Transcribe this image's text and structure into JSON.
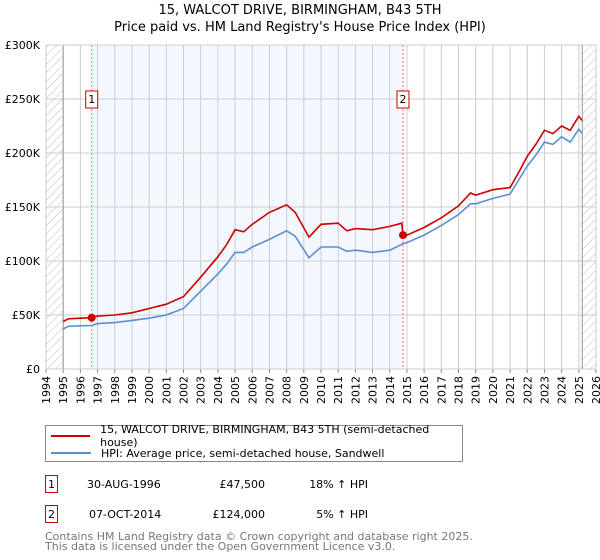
{
  "title_line1": "15, WALCOT DRIVE, BIRMINGHAM, B43 5TH",
  "title_line2": "Price paid vs. HM Land Registry's House Price Index (HPI)",
  "chart_data": {
    "type": "line",
    "title": "15, WALCOT DRIVE, BIRMINGHAM, B43 5TH — Price paid vs. HM Land Registry's House Price Index (HPI)",
    "xlim": [
      1994,
      2026
    ],
    "ylim": [
      0,
      300000
    ],
    "x_ticks": [
      "1994",
      "1995",
      "1996",
      "1997",
      "1998",
      "1999",
      "2000",
      "2001",
      "2002",
      "2003",
      "2004",
      "2005",
      "2006",
      "2007",
      "2008",
      "2009",
      "2010",
      "2011",
      "2012",
      "2013",
      "2014",
      "2015",
      "2016",
      "2017",
      "2018",
      "2019",
      "2020",
      "2021",
      "2022",
      "2023",
      "2024",
      "2025",
      "2026"
    ],
    "y_ticks": [
      {
        "v": 0,
        "label": "£0"
      },
      {
        "v": 50000,
        "label": "£50K"
      },
      {
        "v": 100000,
        "label": "£100K"
      },
      {
        "v": 150000,
        "label": "£150K"
      },
      {
        "v": 200000,
        "label": "£200K"
      },
      {
        "v": 250000,
        "label": "£250K"
      },
      {
        "v": 300000,
        "label": "£300K"
      }
    ],
    "grid": true,
    "legend_position": "below",
    "shaded_range": [
      1996.66,
      2014.77
    ],
    "data_range": [
      1995,
      2025.2
    ],
    "series": [
      {
        "name": "15, WALCOT DRIVE, BIRMINGHAM, B43 5TH (semi-detached house)",
        "color": "#cc0000",
        "x": [
          1995,
          1995.3,
          1996,
          1996.66,
          1997,
          1998,
          1999,
          2000,
          2001,
          2002,
          2003,
          2004,
          2004.5,
          2005,
          2005.5,
          2006,
          2007,
          2008,
          2008.5,
          2009.3,
          2010,
          2011,
          2011.5,
          2012,
          2013,
          2014,
          2014.7,
          2014.77,
          2015,
          2016,
          2017,
          2018,
          2018.7,
          2019,
          2020,
          2021,
          2021.5,
          2022,
          2022.5,
          2023,
          2023.5,
          2024,
          2024.5,
          2025,
          2025.2
        ],
        "y": [
          44000,
          46500,
          47000,
          47500,
          49000,
          50000,
          52000,
          56000,
          60000,
          67000,
          85000,
          104000,
          115000,
          129000,
          127000,
          134000,
          145000,
          152000,
          145000,
          122000,
          134000,
          135000,
          128000,
          130000,
          129000,
          132000,
          135000,
          124000,
          124000,
          131000,
          140000,
          151000,
          163000,
          161000,
          166000,
          168000,
          182000,
          197000,
          208000,
          221000,
          218000,
          225000,
          221000,
          234000,
          230000
        ]
      },
      {
        "name": "HPI: Average price, semi-detached house, Sandwell",
        "color": "#5b8fd4",
        "x": [
          1995,
          1995.3,
          1996,
          1996.66,
          1997,
          1998,
          1999,
          2000,
          2001,
          2002,
          2003,
          2004,
          2004.5,
          2005,
          2005.5,
          2006,
          2007,
          2008,
          2008.5,
          2009.3,
          2010,
          2011,
          2011.5,
          2012,
          2013,
          2014,
          2014.77,
          2015,
          2016,
          2017,
          2018,
          2018.7,
          2019,
          2020,
          2021,
          2021.5,
          2022,
          2022.5,
          2023,
          2023.5,
          2024,
          2024.5,
          2025,
          2025.2
        ],
        "y": [
          37000,
          39500,
          40000,
          40300,
          42000,
          43000,
          45000,
          47000,
          50000,
          56000,
          72000,
          88000,
          97000,
          108000,
          108000,
          113000,
          120000,
          128000,
          123000,
          103000,
          113000,
          113000,
          109000,
          110000,
          108000,
          110000,
          116000,
          117000,
          124000,
          133000,
          143000,
          153000,
          153000,
          158000,
          162000,
          175000,
          188000,
          198000,
          210000,
          208000,
          215000,
          210000,
          222000,
          218000
        ]
      }
    ],
    "annotations": [
      {
        "label": "1",
        "x": 1996.66,
        "y": 47500
      },
      {
        "label": "2",
        "x": 2014.77,
        "y": 124000
      }
    ]
  },
  "legend": {
    "series1": "15, WALCOT DRIVE, BIRMINGHAM, B43 5TH (semi-detached house)",
    "series2": "HPI: Average price, semi-detached house, Sandwell"
  },
  "transactions": [
    {
      "num": "1",
      "date": "30-AUG-1996",
      "price": "£47,500",
      "hpi": "18% ↑ HPI"
    },
    {
      "num": "2",
      "date": "07-OCT-2014",
      "price": "£124,000",
      "hpi": "5% ↑ HPI"
    }
  ],
  "footer": {
    "line1": "Contains HM Land Registry data © Crown copyright and database right 2025.",
    "line2": "This data is licensed under the Open Government Licence v3.0."
  }
}
